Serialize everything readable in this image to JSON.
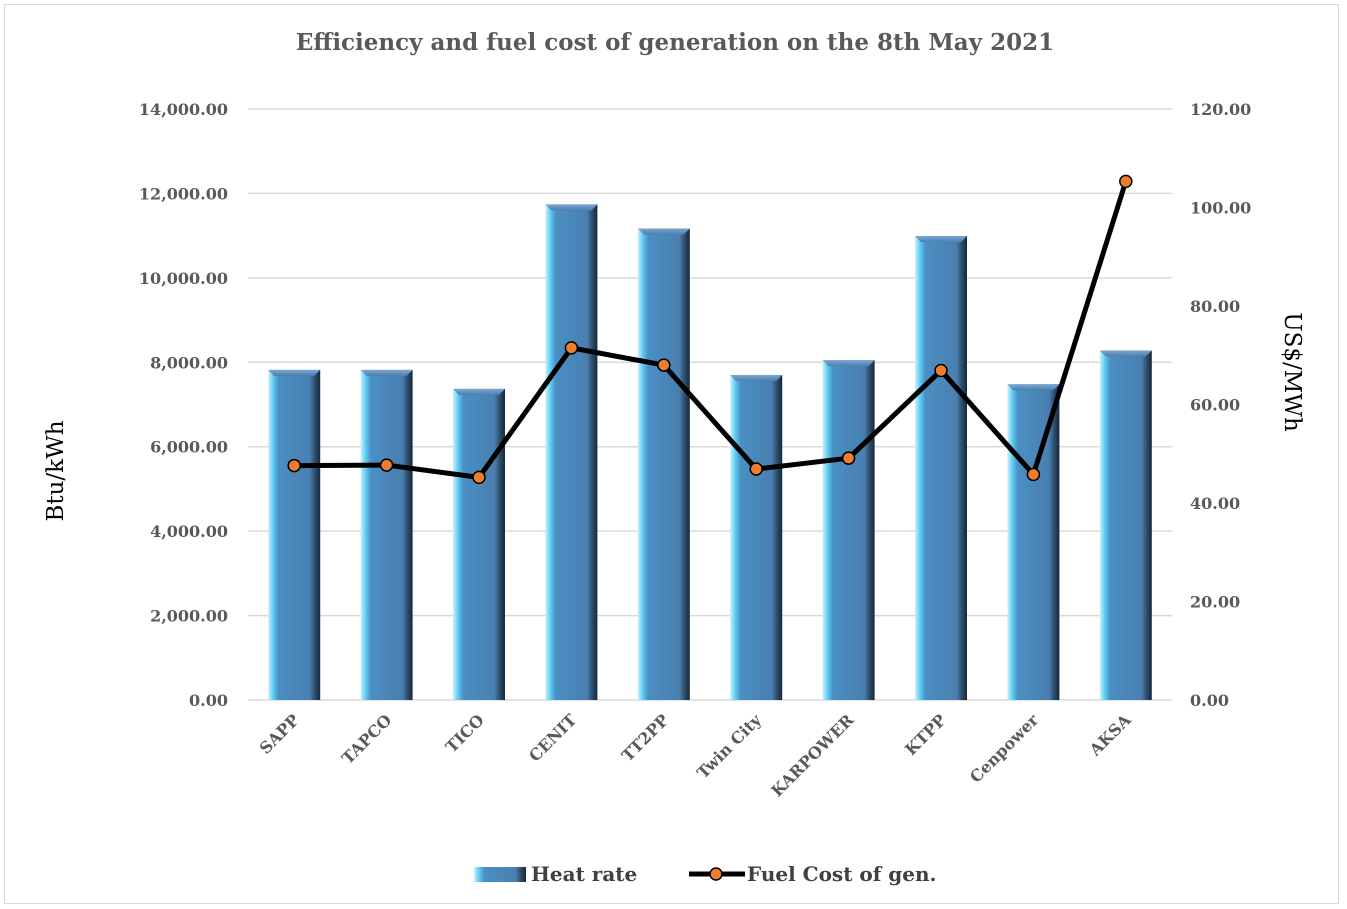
{
  "chart_data": {
    "type": "bar",
    "title": "Efficiency and fuel cost of generation on the 8th May 2021",
    "categories": [
      "SAPP",
      "TAPCO",
      "TICO",
      "CENIT",
      "TT2PP",
      "Twin City",
      "KARPOWER",
      "KTPP",
      "Cenpower",
      "AKSA"
    ],
    "series": [
      {
        "name": "Heat rate",
        "type": "bar",
        "axis": "left",
        "color": "#4f81bd",
        "values": [
          7820,
          7820,
          7370,
          11740,
          11170,
          7700,
          8050,
          10990,
          7480,
          8280
        ]
      },
      {
        "name": "Fuel Cost of gen.",
        "type": "line",
        "axis": "right",
        "color": "#000000",
        "marker_color": "#ed7d31",
        "values": [
          47.6,
          47.7,
          45.2,
          71.5,
          68.0,
          46.9,
          49.1,
          66.9,
          45.8,
          105.3
        ]
      }
    ],
    "ylabel": "Btu/kWh",
    "y2label": "US$/MWh",
    "ylim": [
      0,
      14000
    ],
    "y2lim": [
      0,
      120
    ],
    "yticks": [
      "0.00",
      "2,000.00",
      "4,000.00",
      "6,000.00",
      "8,000.00",
      "10,000.00",
      "12,000.00",
      "14,000.00"
    ],
    "y2ticks": [
      "0.00",
      "20.00",
      "40.00",
      "60.00",
      "80.00",
      "100.00",
      "120.00"
    ],
    "grid": true,
    "legend": "bottom"
  }
}
